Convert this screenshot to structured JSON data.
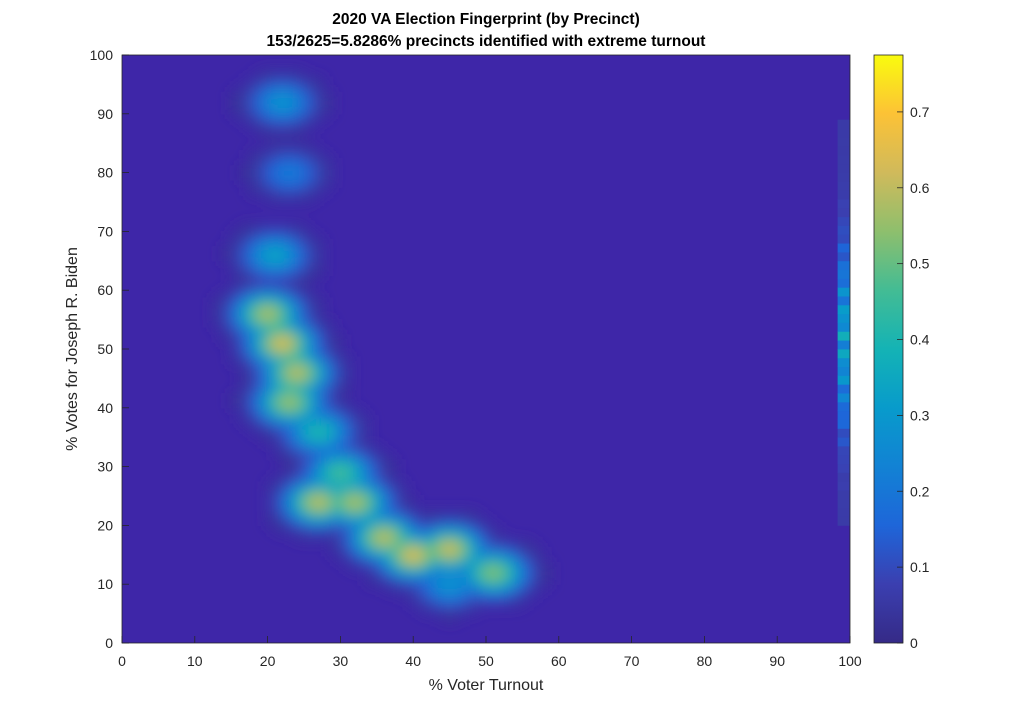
{
  "chart_data": {
    "type": "heatmap",
    "title": "2020 VA Election Fingerprint (by Precinct)",
    "subtitle": "153/2625=5.8286% precincts identified with extreme turnout",
    "xlabel": "% Voter Turnout",
    "ylabel": "% Votes for Joseph R. Biden",
    "xlim": [
      0,
      100
    ],
    "ylim": [
      0,
      100
    ],
    "xticks": [
      "0",
      "10",
      "20",
      "30",
      "40",
      "50",
      "60",
      "70",
      "80",
      "90",
      "100"
    ],
    "yticks": [
      "0",
      "10",
      "20",
      "30",
      "40",
      "50",
      "60",
      "70",
      "80",
      "90",
      "100"
    ],
    "colorbar": {
      "colormap": "parula",
      "range": [
        0,
        0.775
      ],
      "ticks": [
        "0",
        "0.1",
        "0.2",
        "0.3",
        "0.4",
        "0.5",
        "0.6",
        "0.7"
      ]
    },
    "background_color": "#3e26a8",
    "density_hotspots": [
      {
        "x": 22,
        "y": 92,
        "value": 0.3
      },
      {
        "x": 23,
        "y": 80,
        "value": 0.22
      },
      {
        "x": 21,
        "y": 66,
        "value": 0.35
      },
      {
        "x": 20,
        "y": 56,
        "value": 0.6
      },
      {
        "x": 22,
        "y": 51,
        "value": 0.66
      },
      {
        "x": 24,
        "y": 46,
        "value": 0.62
      },
      {
        "x": 23,
        "y": 41,
        "value": 0.58
      },
      {
        "x": 27,
        "y": 36,
        "value": 0.42
      },
      {
        "x": 30,
        "y": 29,
        "value": 0.48
      },
      {
        "x": 27,
        "y": 24,
        "value": 0.62
      },
      {
        "x": 32,
        "y": 24,
        "value": 0.6
      },
      {
        "x": 36,
        "y": 18,
        "value": 0.62
      },
      {
        "x": 40,
        "y": 15,
        "value": 0.66
      },
      {
        "x": 45,
        "y": 16,
        "value": 0.64
      },
      {
        "x": 51,
        "y": 12,
        "value": 0.55
      },
      {
        "x": 45,
        "y": 10,
        "value": 0.3
      }
    ],
    "extreme_turnout_band": {
      "x": 100,
      "y_range": [
        20,
        88
      ],
      "peak_y": 51,
      "peak_value": 0.38
    }
  }
}
